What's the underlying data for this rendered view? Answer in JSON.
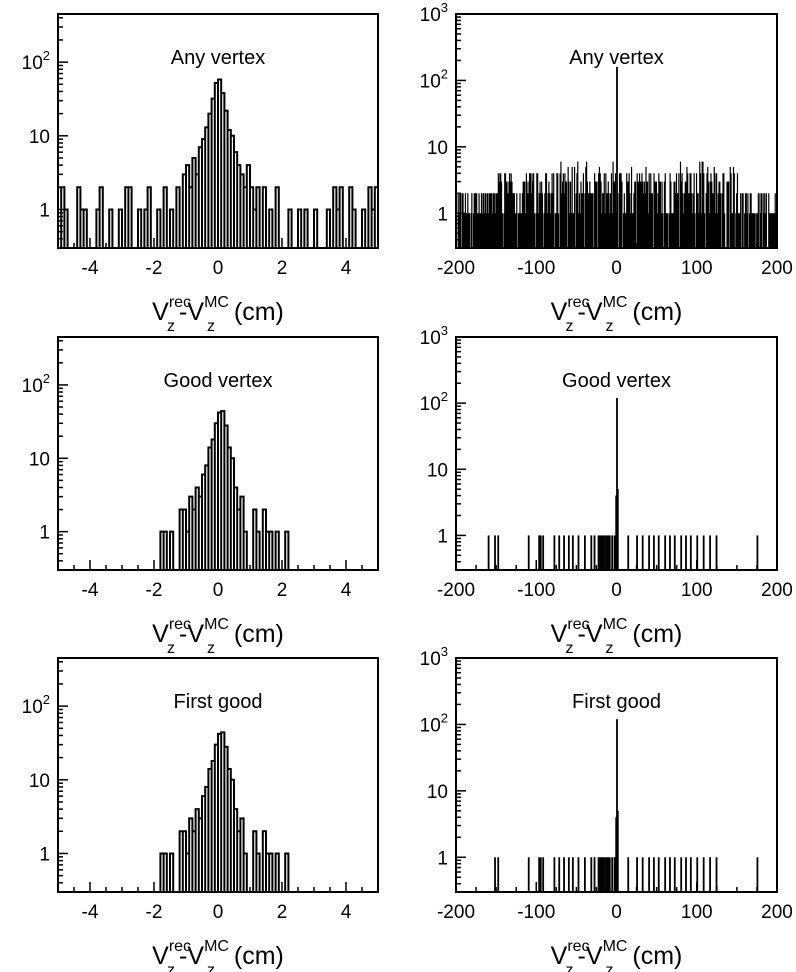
{
  "chart_data": [
    {
      "type": "histogram",
      "title": "Any vertex",
      "xlabel": {
        "base": "V",
        "sup1": "rec",
        "sub1": "z",
        "dash": "-",
        "base2": "V",
        "sup2": "MC",
        "sub2": "z",
        "unit": "(cm)"
      },
      "ylabel": "",
      "xlim": [
        -5,
        5
      ],
      "ylim": [
        0.3,
        450
      ],
      "yscale": "log",
      "xticks": [
        -4,
        -2,
        0,
        2,
        4
      ],
      "xtick_labels": [
        "-4",
        "-2",
        "0",
        "2",
        "4"
      ],
      "yticks": [
        1,
        10,
        100
      ],
      "ytick_labels": [
        {
          "base": "1",
          "exp": ""
        },
        {
          "base": "10",
          "exp": ""
        },
        {
          "base": "10",
          "exp": "2"
        }
      ],
      "bin_width": 0.1,
      "hist_style": "step",
      "bins": [
        {
          "x": -4.95,
          "y": 2
        },
        {
          "x": -4.85,
          "y": 2
        },
        {
          "x": -4.75,
          "y": 1
        },
        {
          "x": -4.35,
          "y": 2
        },
        {
          "x": -4.25,
          "y": 1
        },
        {
          "x": -4.15,
          "y": 1
        },
        {
          "x": -3.75,
          "y": 1
        },
        {
          "x": -3.65,
          "y": 2
        },
        {
          "x": -3.35,
          "y": 1
        },
        {
          "x": -3.05,
          "y": 1
        },
        {
          "x": -2.85,
          "y": 2
        },
        {
          "x": -2.75,
          "y": 2
        },
        {
          "x": -2.45,
          "y": 1
        },
        {
          "x": -2.25,
          "y": 1
        },
        {
          "x": -2.15,
          "y": 2
        },
        {
          "x": -1.85,
          "y": 1
        },
        {
          "x": -1.65,
          "y": 2
        },
        {
          "x": -1.45,
          "y": 1
        },
        {
          "x": -1.25,
          "y": 2
        },
        {
          "x": -1.05,
          "y": 3
        },
        {
          "x": -0.95,
          "y": 4
        },
        {
          "x": -0.85,
          "y": 2
        },
        {
          "x": -0.75,
          "y": 5
        },
        {
          "x": -0.65,
          "y": 3
        },
        {
          "x": -0.55,
          "y": 7
        },
        {
          "x": -0.45,
          "y": 9
        },
        {
          "x": -0.35,
          "y": 13
        },
        {
          "x": -0.25,
          "y": 20
        },
        {
          "x": -0.15,
          "y": 32
        },
        {
          "x": -0.05,
          "y": 52
        },
        {
          "x": 0.05,
          "y": 58
        },
        {
          "x": 0.15,
          "y": 38
        },
        {
          "x": 0.25,
          "y": 22
        },
        {
          "x": 0.35,
          "y": 12
        },
        {
          "x": 0.45,
          "y": 10
        },
        {
          "x": 0.55,
          "y": 6
        },
        {
          "x": 0.65,
          "y": 4
        },
        {
          "x": 0.75,
          "y": 3
        },
        {
          "x": 0.85,
          "y": 2
        },
        {
          "x": 0.95,
          "y": 4
        },
        {
          "x": 1.05,
          "y": 2
        },
        {
          "x": 1.15,
          "y": 1
        },
        {
          "x": 1.25,
          "y": 2
        },
        {
          "x": 1.45,
          "y": 2
        },
        {
          "x": 1.65,
          "y": 1
        },
        {
          "x": 1.85,
          "y": 2
        },
        {
          "x": 2.25,
          "y": 1
        },
        {
          "x": 2.55,
          "y": 1
        },
        {
          "x": 2.75,
          "y": 1
        },
        {
          "x": 3.05,
          "y": 1
        },
        {
          "x": 3.45,
          "y": 1
        },
        {
          "x": 3.65,
          "y": 2
        },
        {
          "x": 3.75,
          "y": 1
        },
        {
          "x": 3.85,
          "y": 2
        },
        {
          "x": 4.15,
          "y": 2
        },
        {
          "x": 4.25,
          "y": 1
        },
        {
          "x": 4.55,
          "y": 1
        },
        {
          "x": 4.75,
          "y": 2
        },
        {
          "x": 4.85,
          "y": 1
        },
        {
          "x": 4.95,
          "y": 2
        }
      ]
    },
    {
      "type": "histogram",
      "title": "Any vertex",
      "xlabel": {
        "base": "V",
        "sup1": "rec",
        "sub1": "z",
        "dash": "-",
        "base2": "V",
        "sup2": "MC",
        "sub2": "z",
        "unit": "(cm)"
      },
      "ylabel": "",
      "xlim": [
        -200,
        200
      ],
      "ylim": [
        0.3,
        1000
      ],
      "yscale": "log",
      "xticks": [
        -200,
        -100,
        0,
        100,
        200
      ],
      "xtick_labels": [
        "-200",
        "-100",
        "0",
        "100",
        "200"
      ],
      "yticks": [
        1,
        10,
        100,
        1000
      ],
      "ytick_labels": [
        {
          "base": "1",
          "exp": ""
        },
        {
          "base": "10",
          "exp": ""
        },
        {
          "base": "10",
          "exp": "2"
        },
        {
          "base": "10",
          "exp": "3"
        }
      ],
      "bin_width": 1,
      "hist_style": "bars",
      "dense_background": {
        "x_range": [
          -200,
          200
        ],
        "typical_max": 4,
        "edge_max": 2,
        "peak_max": 6
      },
      "bins": [
        {
          "x": 0,
          "y": 160
        }
      ]
    },
    {
      "type": "histogram",
      "title": "Good vertex",
      "xlabel": {
        "base": "V",
        "sup1": "rec",
        "sub1": "z",
        "dash": "-",
        "base2": "V",
        "sup2": "MC",
        "sub2": "z",
        "unit": "(cm)"
      },
      "ylabel": "",
      "xlim": [
        -5,
        5
      ],
      "ylim": [
        0.3,
        450
      ],
      "yscale": "log",
      "xticks": [
        -4,
        -2,
        0,
        2,
        4
      ],
      "xtick_labels": [
        "-4",
        "-2",
        "0",
        "2",
        "4"
      ],
      "yticks": [
        1,
        10,
        100
      ],
      "ytick_labels": [
        {
          "base": "1",
          "exp": ""
        },
        {
          "base": "10",
          "exp": ""
        },
        {
          "base": "10",
          "exp": "2"
        }
      ],
      "bin_width": 0.1,
      "hist_style": "step",
      "bins": [
        {
          "x": -1.75,
          "y": 1
        },
        {
          "x": -1.65,
          "y": 1
        },
        {
          "x": -1.45,
          "y": 1
        },
        {
          "x": -1.15,
          "y": 2
        },
        {
          "x": -1.05,
          "y": 2
        },
        {
          "x": -0.95,
          "y": 1
        },
        {
          "x": -0.85,
          "y": 3
        },
        {
          "x": -0.75,
          "y": 2
        },
        {
          "x": -0.65,
          "y": 4
        },
        {
          "x": -0.55,
          "y": 3
        },
        {
          "x": -0.45,
          "y": 6
        },
        {
          "x": -0.35,
          "y": 8
        },
        {
          "x": -0.25,
          "y": 14
        },
        {
          "x": -0.15,
          "y": 18
        },
        {
          "x": -0.05,
          "y": 30
        },
        {
          "x": 0.05,
          "y": 42
        },
        {
          "x": 0.15,
          "y": 44
        },
        {
          "x": 0.25,
          "y": 28
        },
        {
          "x": 0.35,
          "y": 14
        },
        {
          "x": 0.45,
          "y": 10
        },
        {
          "x": 0.55,
          "y": 4
        },
        {
          "x": 0.65,
          "y": 2
        },
        {
          "x": 0.75,
          "y": 3
        },
        {
          "x": 0.85,
          "y": 1
        },
        {
          "x": 1.15,
          "y": 2
        },
        {
          "x": 1.25,
          "y": 1
        },
        {
          "x": 1.45,
          "y": 2
        },
        {
          "x": 1.55,
          "y": 1
        },
        {
          "x": 1.65,
          "y": 1
        },
        {
          "x": 1.85,
          "y": 1
        },
        {
          "x": 2.15,
          "y": 1
        }
      ]
    },
    {
      "type": "histogram",
      "title": "Good vertex",
      "xlabel": {
        "base": "V",
        "sup1": "rec",
        "sub1": "z",
        "dash": "-",
        "base2": "V",
        "sup2": "MC",
        "sub2": "z",
        "unit": "(cm)"
      },
      "ylabel": "",
      "xlim": [
        -200,
        200
      ],
      "ylim": [
        0.3,
        1000
      ],
      "yscale": "log",
      "xticks": [
        -200,
        -100,
        0,
        100,
        200
      ],
      "xtick_labels": [
        "-200",
        "-100",
        "0",
        "100",
        "200"
      ],
      "yticks": [
        1,
        10,
        100,
        1000
      ],
      "ytick_labels": [
        {
          "base": "1",
          "exp": ""
        },
        {
          "base": "10",
          "exp": ""
        },
        {
          "base": "10",
          "exp": "2"
        },
        {
          "base": "10",
          "exp": "3"
        }
      ],
      "bin_width": 1,
      "hist_style": "bars",
      "bins": [
        {
          "x": -160,
          "y": 1
        },
        {
          "x": -152,
          "y": 1
        },
        {
          "x": -148,
          "y": 1
        },
        {
          "x": -110,
          "y": 1
        },
        {
          "x": -97,
          "y": 1
        },
        {
          "x": -95,
          "y": 1
        },
        {
          "x": -92,
          "y": 1
        },
        {
          "x": -78,
          "y": 1
        },
        {
          "x": -72,
          "y": 1
        },
        {
          "x": -66,
          "y": 1
        },
        {
          "x": -60,
          "y": 1
        },
        {
          "x": -55,
          "y": 1
        },
        {
          "x": -48,
          "y": 1
        },
        {
          "x": -40,
          "y": 1
        },
        {
          "x": -32,
          "y": 1
        },
        {
          "x": -28,
          "y": 1
        },
        {
          "x": -23,
          "y": 1
        },
        {
          "x": -21,
          "y": 1
        },
        {
          "x": -19,
          "y": 1
        },
        {
          "x": -17,
          "y": 1
        },
        {
          "x": -15,
          "y": 1
        },
        {
          "x": -13,
          "y": 1
        },
        {
          "x": -11,
          "y": 1
        },
        {
          "x": -9,
          "y": 1
        },
        {
          "x": -6,
          "y": 1
        },
        {
          "x": -3,
          "y": 1
        },
        {
          "x": -1,
          "y": 4
        },
        {
          "x": 0,
          "y": 120
        },
        {
          "x": 1,
          "y": 5
        },
        {
          "x": 14,
          "y": 1
        },
        {
          "x": 25,
          "y": 1
        },
        {
          "x": 32,
          "y": 1
        },
        {
          "x": 40,
          "y": 1
        },
        {
          "x": 46,
          "y": 1
        },
        {
          "x": 52,
          "y": 1
        },
        {
          "x": 60,
          "y": 1
        },
        {
          "x": 66,
          "y": 1
        },
        {
          "x": 72,
          "y": 1
        },
        {
          "x": 80,
          "y": 1
        },
        {
          "x": 86,
          "y": 1
        },
        {
          "x": 92,
          "y": 1
        },
        {
          "x": 100,
          "y": 1
        },
        {
          "x": 108,
          "y": 1
        },
        {
          "x": 116,
          "y": 1
        },
        {
          "x": 124,
          "y": 1
        },
        {
          "x": 175,
          "y": 1
        }
      ]
    },
    {
      "type": "histogram",
      "title": "First good",
      "xlabel": {
        "base": "V",
        "sup1": "rec",
        "sub1": "z",
        "dash": "-",
        "base2": "V",
        "sup2": "MC",
        "sub2": "z",
        "unit": "(cm)"
      },
      "ylabel": "",
      "xlim": [
        -5,
        5
      ],
      "ylim": [
        0.3,
        450
      ],
      "yscale": "log",
      "xticks": [
        -4,
        -2,
        0,
        2,
        4
      ],
      "xtick_labels": [
        "-4",
        "-2",
        "0",
        "2",
        "4"
      ],
      "yticks": [
        1,
        10,
        100
      ],
      "ytick_labels": [
        {
          "base": "1",
          "exp": ""
        },
        {
          "base": "10",
          "exp": ""
        },
        {
          "base": "10",
          "exp": "2"
        }
      ],
      "bin_width": 0.1,
      "hist_style": "step",
      "bins": [
        {
          "x": -1.75,
          "y": 1
        },
        {
          "x": -1.65,
          "y": 1
        },
        {
          "x": -1.45,
          "y": 1
        },
        {
          "x": -1.15,
          "y": 2
        },
        {
          "x": -1.05,
          "y": 2
        },
        {
          "x": -0.95,
          "y": 1
        },
        {
          "x": -0.85,
          "y": 3
        },
        {
          "x": -0.75,
          "y": 2
        },
        {
          "x": -0.65,
          "y": 4
        },
        {
          "x": -0.55,
          "y": 3
        },
        {
          "x": -0.45,
          "y": 6
        },
        {
          "x": -0.35,
          "y": 8
        },
        {
          "x": -0.25,
          "y": 14
        },
        {
          "x": -0.15,
          "y": 18
        },
        {
          "x": -0.05,
          "y": 30
        },
        {
          "x": 0.05,
          "y": 42
        },
        {
          "x": 0.15,
          "y": 44
        },
        {
          "x": 0.25,
          "y": 28
        },
        {
          "x": 0.35,
          "y": 14
        },
        {
          "x": 0.45,
          "y": 10
        },
        {
          "x": 0.55,
          "y": 4
        },
        {
          "x": 0.65,
          "y": 2
        },
        {
          "x": 0.75,
          "y": 3
        },
        {
          "x": 0.85,
          "y": 1
        },
        {
          "x": 1.15,
          "y": 2
        },
        {
          "x": 1.25,
          "y": 1
        },
        {
          "x": 1.45,
          "y": 2
        },
        {
          "x": 1.55,
          "y": 1
        },
        {
          "x": 1.65,
          "y": 1
        },
        {
          "x": 1.85,
          "y": 1
        },
        {
          "x": 2.15,
          "y": 1
        }
      ]
    },
    {
      "type": "histogram",
      "title": "First good",
      "xlabel": {
        "base": "V",
        "sup1": "rec",
        "sub1": "z",
        "dash": "-",
        "base2": "V",
        "sup2": "MC",
        "sub2": "z",
        "unit": "(cm)"
      },
      "ylabel": "",
      "xlim": [
        -200,
        200
      ],
      "ylim": [
        0.3,
        1000
      ],
      "yscale": "log",
      "xticks": [
        -200,
        -100,
        0,
        100,
        200
      ],
      "xtick_labels": [
        "-200",
        "-100",
        "0",
        "100",
        "200"
      ],
      "yticks": [
        1,
        10,
        100,
        1000
      ],
      "ytick_labels": [
        {
          "base": "1",
          "exp": ""
        },
        {
          "base": "10",
          "exp": ""
        },
        {
          "base": "10",
          "exp": "2"
        },
        {
          "base": "10",
          "exp": "3"
        }
      ],
      "bin_width": 1,
      "hist_style": "bars",
      "bins": [
        {
          "x": -152,
          "y": 1
        },
        {
          "x": -148,
          "y": 1
        },
        {
          "x": -110,
          "y": 1
        },
        {
          "x": -97,
          "y": 1
        },
        {
          "x": -95,
          "y": 1
        },
        {
          "x": -92,
          "y": 1
        },
        {
          "x": -78,
          "y": 1
        },
        {
          "x": -72,
          "y": 1
        },
        {
          "x": -66,
          "y": 1
        },
        {
          "x": -60,
          "y": 1
        },
        {
          "x": -55,
          "y": 1
        },
        {
          "x": -48,
          "y": 1
        },
        {
          "x": -40,
          "y": 1
        },
        {
          "x": -32,
          "y": 1
        },
        {
          "x": -28,
          "y": 1
        },
        {
          "x": -23,
          "y": 1
        },
        {
          "x": -21,
          "y": 1
        },
        {
          "x": -19,
          "y": 1
        },
        {
          "x": -17,
          "y": 1
        },
        {
          "x": -15,
          "y": 1
        },
        {
          "x": -13,
          "y": 1
        },
        {
          "x": -11,
          "y": 1
        },
        {
          "x": -9,
          "y": 1
        },
        {
          "x": -6,
          "y": 1
        },
        {
          "x": -3,
          "y": 1
        },
        {
          "x": -1,
          "y": 4
        },
        {
          "x": 0,
          "y": 120
        },
        {
          "x": 1,
          "y": 5
        },
        {
          "x": 14,
          "y": 1
        },
        {
          "x": 25,
          "y": 1
        },
        {
          "x": 32,
          "y": 1
        },
        {
          "x": 40,
          "y": 1
        },
        {
          "x": 46,
          "y": 1
        },
        {
          "x": 52,
          "y": 1
        },
        {
          "x": 60,
          "y": 1
        },
        {
          "x": 66,
          "y": 1
        },
        {
          "x": 72,
          "y": 1
        },
        {
          "x": 80,
          "y": 1
        },
        {
          "x": 86,
          "y": 1
        },
        {
          "x": 92,
          "y": 1
        },
        {
          "x": 100,
          "y": 1
        },
        {
          "x": 108,
          "y": 1
        },
        {
          "x": 116,
          "y": 1
        },
        {
          "x": 124,
          "y": 1
        },
        {
          "x": 175,
          "y": 1
        }
      ]
    }
  ]
}
